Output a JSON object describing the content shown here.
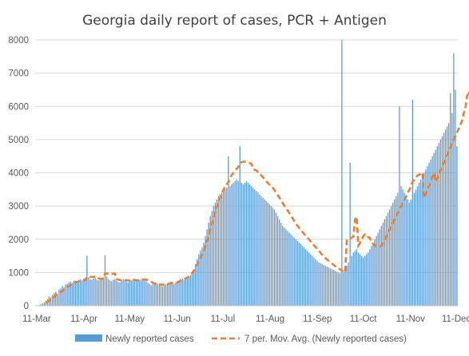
{
  "chart_data": {
    "type": "bar",
    "title": "Georgia daily report of cases, PCR + Antigen",
    "xlabel": "",
    "ylabel": "",
    "ylim": [
      0,
      8000
    ],
    "yticks": [
      "0",
      "1000",
      "2000",
      "3000",
      "4000",
      "5000",
      "6000",
      "7000",
      "8000"
    ],
    "xticks": [
      "11-Mar",
      "11-Apr",
      "11-May",
      "11-Jun",
      "11-Jul",
      "11-Aug",
      "11-Sep",
      "11-Oct",
      "11-Nov",
      "11-Dec"
    ],
    "grid": "horizontal",
    "legend_position": "bottom",
    "colors": {
      "bars": "#5b9bd5",
      "moving_avg": "#ed7d31",
      "grid": "#d9d9d9",
      "axis": "#bfbfbf"
    },
    "x_start": "2020-03-10",
    "series": [
      {
        "name": "Newly reported cases",
        "type": "bar",
        "values": [
          0,
          0,
          20,
          40,
          70,
          100,
          150,
          200,
          280,
          250,
          330,
          380,
          420,
          350,
          480,
          520,
          600,
          560,
          640,
          660,
          700,
          720,
          680,
          750,
          760,
          720,
          780,
          800,
          760,
          820,
          830,
          1500,
          860,
          800,
          780,
          820,
          840,
          780,
          760,
          800,
          820,
          850,
          1520,
          880,
          800,
          760,
          740,
          780,
          800,
          760,
          720,
          700,
          760,
          800,
          780,
          740,
          700,
          780,
          760,
          800,
          820,
          780,
          740,
          760,
          800,
          820,
          780,
          740,
          700,
          660,
          620,
          640,
          680,
          700,
          660,
          620,
          600,
          580,
          620,
          640,
          680,
          700,
          720,
          680,
          660,
          700,
          720,
          760,
          800,
          820,
          780,
          800,
          840,
          880,
          920,
          1000,
          1100,
          1250,
          1400,
          1550,
          1650,
          1750,
          1900,
          2100,
          2300,
          2500,
          2700,
          2850,
          3000,
          3100,
          3200,
          3300,
          3350,
          3400,
          3450,
          3500,
          3550,
          4500,
          3600,
          3650,
          3700,
          3750,
          3800,
          3750,
          4800,
          3700,
          3650,
          3700,
          3750,
          3700,
          3650,
          3600,
          3550,
          3500,
          3450,
          3400,
          3350,
          3300,
          3250,
          3200,
          3150,
          3100,
          3050,
          3000,
          2950,
          2900,
          2800,
          2700,
          2600,
          2500,
          2400,
          2350,
          2300,
          2250,
          2200,
          2150,
          2100,
          2050,
          2000,
          1950,
          1900,
          1850,
          1800,
          1750,
          1700,
          1650,
          1600,
          1550,
          1500,
          1450,
          1400,
          1350,
          1300,
          1280,
          1250,
          1220,
          1200,
          1180,
          1150,
          1120,
          1100,
          1080,
          1050,
          1020,
          1000,
          980,
          8000,
          1000,
          1100,
          1200,
          1300,
          4300,
          1500,
          1600,
          1650,
          1700,
          1600,
          1550,
          1500,
          1450,
          1500,
          1550,
          1600,
          1700,
          1800,
          1900,
          2000,
          2100,
          2200,
          2300,
          2400,
          2500,
          2600,
          2700,
          2800,
          2900,
          3000,
          3100,
          3200,
          3300,
          3400,
          6000,
          3600,
          3500,
          3400,
          3300,
          3200,
          3100,
          3200,
          6200,
          3400,
          3500,
          3600,
          3700,
          3800,
          3900,
          4000,
          4100,
          4200,
          4300,
          4400,
          4500,
          4600,
          4700,
          4800,
          4900,
          5000,
          5100,
          5200,
          5300,
          5400,
          5500,
          6400,
          5800,
          7600,
          6500,
          4800
        ]
      },
      {
        "name": "7 per. Mov. Avg. (Newly reported cases)",
        "type": "line",
        "values": [
          null,
          null,
          null,
          null,
          null,
          null,
          85,
          123,
          161,
          187,
          218,
          258,
          316,
          352,
          381,
          404,
          439,
          477,
          506,
          558,
          588,
          620,
          651,
          674,
          701,
          714,
          732,
          738,
          742,
          754,
          766,
          861,
          868,
          868,
          866,
          869,
          874,
          878,
          824,
          812,
          809,
          814,
          965,
          970,
          967,
          961,
          955,
          962,
          965,
          806,
          784,
          774,
          769,
          771,
          771,
          767,
          760,
          757,
          760,
          763,
          771,
          768,
          763,
          769,
          777,
          786,
          791,
          785,
          772,
          751,
          725,
          691,
          666,
          651,
          643,
          640,
          634,
          632,
          637,
          642,
          654,
          666,
          677,
          680,
          680,
          686,
          703,
          728,
          752,
          780,
          800,
          820,
          849,
          879,
          920,
          981,
          1059,
          1146,
          1230,
          1335,
          1435,
          1535,
          1650,
          1793,
          1957,
          2135,
          2307,
          2485,
          2657,
          2829,
          2983,
          3126,
          3264,
          3376,
          3491,
          3580,
          3657,
          3724,
          3852,
          3929,
          4000,
          4064,
          4121,
          4171,
          4293,
          4314,
          4336,
          4336,
          4330,
          4314,
          4295,
          4272,
          4114,
          4093,
          4071,
          4021,
          3971,
          3921,
          3864,
          3807,
          3750,
          3693,
          3643,
          3593,
          3543,
          3479,
          3407,
          3329,
          3250,
          3171,
          3093,
          3014,
          2943,
          2871,
          2793,
          2714,
          2636,
          2557,
          2479,
          2407,
          2343,
          2279,
          2221,
          2164,
          2107,
          2050,
          1993,
          1936,
          1879,
          1821,
          1764,
          1707,
          1650,
          1593,
          1536,
          1486,
          1436,
          1389,
          1347,
          1307,
          1266,
          1226,
          1189,
          1157,
          1124,
          1091,
          1060,
          1029,
          998,
          1992,
          2008,
          2026,
          2050,
          2086,
          2596,
          2679,
          1807,
          1893,
          2000,
          2086,
          2150,
          2136,
          2064,
          2043,
          1893,
          1857,
          1814,
          1779,
          1771,
          1781,
          1807,
          1879,
          1979,
          2086,
          2186,
          2286,
          2386,
          2486,
          2586,
          2686,
          2786,
          2886,
          2986,
          3086,
          3186,
          3286,
          3386,
          3486,
          3586,
          3736,
          3793,
          3850,
          3921,
          3943,
          3971,
          4007,
          3243,
          3371,
          3479,
          3600,
          3729,
          3871,
          4000,
          3729,
          3843,
          3957,
          4071,
          4186,
          4300,
          4414,
          4529,
          4643,
          4757,
          4871,
          4986,
          5100,
          5214,
          5329,
          5443,
          5557,
          5786,
          5900,
          6286,
          6453,
          6311
        ]
      }
    ]
  }
}
